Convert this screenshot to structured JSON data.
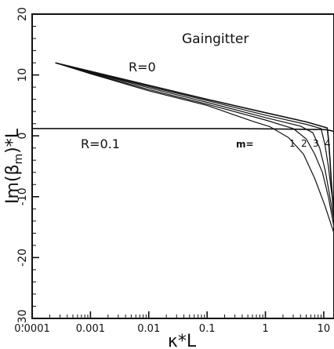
{
  "chart_data": {
    "type": "line",
    "title": "",
    "annotations": {
      "panel_label": "Gaingitter",
      "r0_label": "R=0",
      "r01_label": "R=0.1",
      "m_label": "m=",
      "mode_labels": [
        "1",
        "2",
        "3",
        "4"
      ]
    },
    "xlabel": "κ*L",
    "ylabel": "Im(β",
    "ylabel_sub": "m",
    "ylabel_tail": ")*L",
    "xscale": "log",
    "xlim": [
      0.0001,
      15
    ],
    "ylim": [
      -30,
      20
    ],
    "x_ticks": [
      {
        "value": 0.0001,
        "label": "0.0001"
      },
      {
        "value": 0.001,
        "label": "0.001"
      },
      {
        "value": 0.01,
        "label": "0.01"
      },
      {
        "value": 0.1,
        "label": "0.1"
      },
      {
        "value": 1,
        "label": "1"
      },
      {
        "value": 10,
        "label": "10"
      }
    ],
    "y_ticks": [
      {
        "value": 20,
        "label": "20"
      },
      {
        "value": 10,
        "label": "10"
      },
      {
        "value": 0,
        "label": "0"
      },
      {
        "value": -10,
        "label": "-10"
      },
      {
        "value": -20,
        "label": "-20"
      },
      {
        "value": -30,
        "label": "-30"
      }
    ],
    "grid": false,
    "series": [
      {
        "name": "R=0",
        "x": [
          0.00025,
          0.001,
          0.01,
          0.1,
          1,
          5,
          11.5,
          12.2,
          12.8,
          13.5,
          14.3,
          15
        ],
        "y": [
          12,
          10.6,
          8.3,
          6,
          3.8,
          2.3,
          1.3,
          -1,
          -4,
          -7.5,
          -11,
          -13.5
        ]
      },
      {
        "name": "",
        "x": [
          0.00025,
          0.001,
          0.01,
          0.1,
          1,
          5,
          9,
          10.5,
          12,
          13.5,
          15
        ],
        "y": [
          12,
          10.5,
          8.1,
          5.8,
          3.4,
          1.9,
          1.2,
          -1.5,
          -5,
          -9,
          -12
        ]
      },
      {
        "name": "",
        "x": [
          0.00025,
          0.001,
          0.01,
          0.1,
          1,
          4,
          6.5,
          8.5,
          10.5,
          12.5,
          15
        ],
        "y": [
          12,
          10.4,
          7.9,
          5.5,
          3,
          1.6,
          0.5,
          -2,
          -5.5,
          -9.5,
          -14
        ]
      },
      {
        "name": "",
        "x": [
          0.00025,
          0.001,
          0.01,
          0.1,
          1,
          3,
          5,
          7,
          9.5,
          12,
          15
        ],
        "y": [
          12,
          10.3,
          7.6,
          5.2,
          2.6,
          1.2,
          -0.5,
          -3,
          -6,
          -10,
          -15
        ]
      },
      {
        "name": "",
        "x": [
          0.00025,
          0.001,
          0.01,
          0.1,
          0.6,
          1.2,
          2.5,
          4.5,
          7,
          10.5,
          15
        ],
        "y": [
          12,
          10.2,
          7.4,
          5,
          2.4,
          1.5,
          -0.3,
          -3,
          -7,
          -11.5,
          -16
        ]
      },
      {
        "name": "R=0.1",
        "x": [
          0.0001,
          0.3,
          1,
          3,
          6,
          9,
          11,
          12.5,
          14,
          15
        ],
        "y": [
          1.2,
          1.2,
          1.15,
          1.1,
          1.05,
          1.05,
          1.0,
          0.9,
          0.8,
          0.7
        ]
      }
    ]
  }
}
